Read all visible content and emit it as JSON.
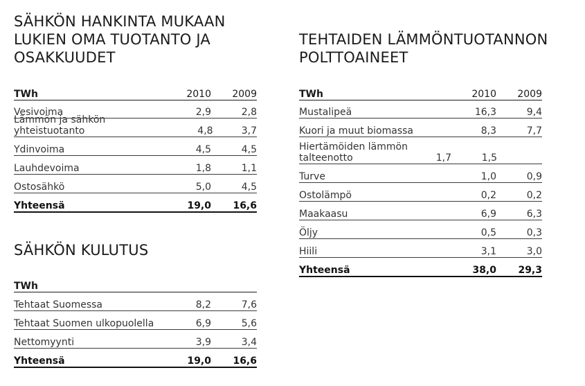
{
  "supply": {
    "title_lines": [
      "SÄHKÖN HANKINTA MUKAAN",
      "LUKIEN OMA TUOTANTO JA",
      "OSAKKUUDET"
    ],
    "header": {
      "unit": "TWh",
      "col1": "2010",
      "col2": "2009"
    },
    "rows": [
      {
        "label": "Vesivoima",
        "v2010": "2,9",
        "v2009": "2,8"
      },
      {
        "label": "Lämmön ja sähkön yhteistuotanto",
        "v2010": "4,8",
        "v2009": "3,7"
      },
      {
        "label": "Ydinvoima",
        "v2010": "4,5",
        "v2009": "4,5"
      },
      {
        "label": "Lauhdevoima",
        "v2010": "1,8",
        "v2009": "1,1"
      },
      {
        "label": "Ostosähkö",
        "v2010": "5,0",
        "v2009": "4,5"
      }
    ],
    "total": {
      "label": "Yhteensä",
      "v2010": "19,0",
      "v2009": "16,6"
    }
  },
  "consumption": {
    "title": "SÄHKÖN KULUTUS",
    "header": {
      "unit": "TWh"
    },
    "rows": [
      {
        "label": "Tehtaat Suomessa",
        "v2010": "8,2",
        "v2009": "7,6"
      },
      {
        "label": "Tehtaat Suomen ulkopuolella",
        "v2010": "6,9",
        "v2009": "5,6"
      },
      {
        "label": "Nettomyynti",
        "v2010": "3,9",
        "v2009": "3,4"
      }
    ],
    "total": {
      "label": "Yhteensä",
      "v2010": "19,0",
      "v2009": "16,6"
    }
  },
  "heat": {
    "title_lines": [
      "TEHTAIDEN LÄMMÖNTUOTANNON",
      "POLTTOAINEET"
    ],
    "header": {
      "unit": "TWh",
      "col1": "2010",
      "col2": "2009"
    },
    "rows": [
      {
        "label": "Mustalipeä",
        "v2010": "16,3",
        "v2009": "9,4"
      },
      {
        "label": "Kuori ja muut biomassa",
        "v2010": "8,3",
        "v2009": "7,7"
      },
      {
        "label": "Hiertämöiden lämmön talteenotto",
        "v2010": "1,7",
        "v2009": "1,5"
      },
      {
        "label": "Turve",
        "v2010": "1,0",
        "v2009": "0,9"
      },
      {
        "label": "Ostolämpö",
        "v2010": "0,2",
        "v2009": "0,2"
      },
      {
        "label": "Maakaasu",
        "v2010": "6,9",
        "v2009": "6,3"
      },
      {
        "label": "Öljy",
        "v2010": "0,5",
        "v2009": "0,3"
      },
      {
        "label": "Hiili",
        "v2010": "3,1",
        "v2009": "3,0"
      }
    ],
    "total": {
      "label": "Yhteensä",
      "v2010": "38,0",
      "v2009": "29,3"
    }
  }
}
